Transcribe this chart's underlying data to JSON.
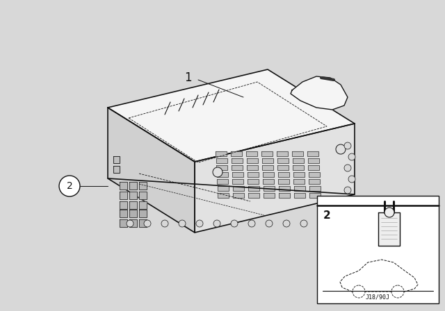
{
  "bg_color": "#d8d8d8",
  "inner_bg": "#ffffff",
  "line_color": "#111111",
  "part_number": "J18/90J",
  "label_1": "1",
  "label_2": "2",
  "figsize": [
    6.4,
    4.48
  ],
  "dpi": 100,
  "top_face_color": "#f5f5f5",
  "right_face_color": "#e2e2e2",
  "front_face_color": "#d0d0d0",
  "grille_color": "#c0c0c0",
  "inset_bg": "#ffffff"
}
